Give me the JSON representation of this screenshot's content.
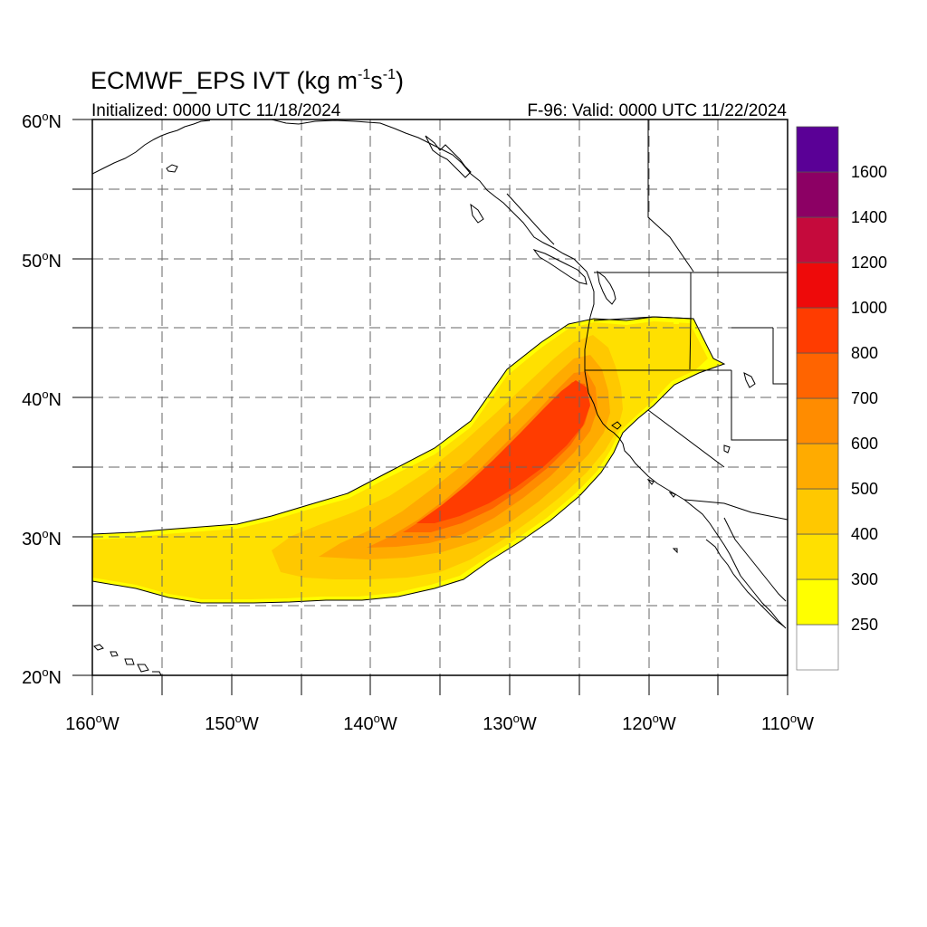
{
  "title": {
    "main": "ECMWF_EPS IVT (kg m",
    "exp1": "-1",
    "mid": "s",
    "exp2": "-1",
    "close": ")"
  },
  "initialized": "Initialized: 0000 UTC 11/18/2024",
  "valid": "F-96: Valid: 0000 UTC 11/22/2024",
  "lat_labels": [
    {
      "deg": "60",
      "hemi": "N"
    },
    {
      "deg": "50",
      "hemi": "N"
    },
    {
      "deg": "40",
      "hemi": "N"
    },
    {
      "deg": "30",
      "hemi": "N"
    },
    {
      "deg": "20",
      "hemi": "N"
    }
  ],
  "lon_labels": [
    {
      "deg": "160",
      "hemi": "W"
    },
    {
      "deg": "150",
      "hemi": "W"
    },
    {
      "deg": "140",
      "hemi": "W"
    },
    {
      "deg": "130",
      "hemi": "W"
    },
    {
      "deg": "120",
      "hemi": "W"
    },
    {
      "deg": "110",
      "hemi": "W"
    }
  ],
  "colorbar": {
    "labels": [
      "250",
      "300",
      "400",
      "500",
      "600",
      "700",
      "800",
      "1000",
      "1200",
      "1400",
      "1600"
    ],
    "colors": [
      "#ffffff",
      "#ffff00",
      "#ffe000",
      "#ffc800",
      "#ffab00",
      "#ff8c00",
      "#ff6400",
      "#ff3c00",
      "#ee0a0a",
      "#c50a3c",
      "#8c0064",
      "#5a0096"
    ]
  },
  "map_extent": {
    "lon_min": -160,
    "lon_max": -110,
    "lat_min": 20,
    "lat_max": 60
  },
  "field_colors": {
    "band250": "#ffff00",
    "band300": "#ffe000",
    "band400": "#ffc800",
    "band500": "#ffab00",
    "band600": "#ff8c00",
    "band700": "#ff6400",
    "band800": "#ff3c00"
  }
}
